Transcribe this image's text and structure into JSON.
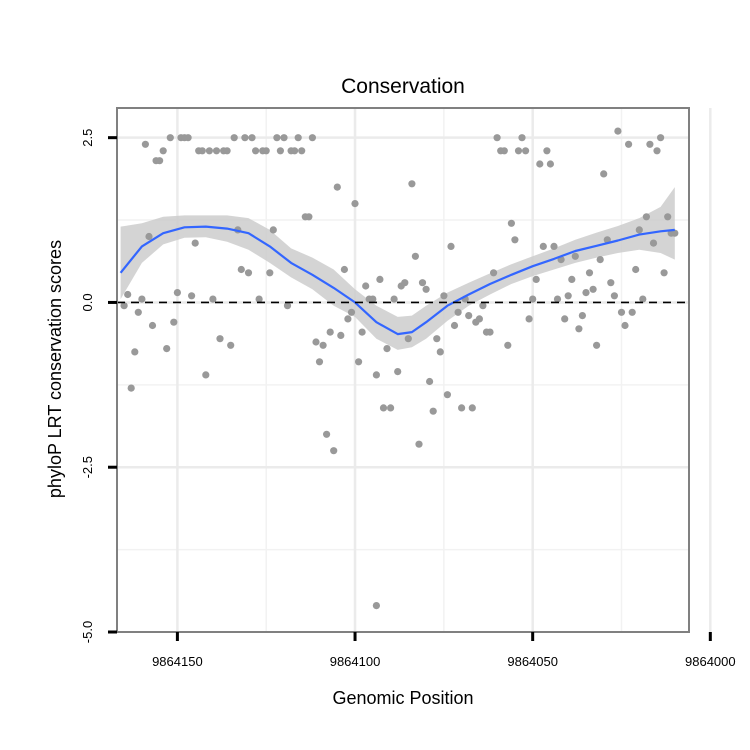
{
  "chart_data": {
    "type": "scatter",
    "title": "Conservation",
    "xlabel": "Genomic Position",
    "ylabel": "phyloP LRT conservation scores",
    "x_reversed": true,
    "xlim": [
      9864167,
      9864006
    ],
    "ylim": [
      -5.0,
      2.95
    ],
    "x_ticks": [
      9864150,
      9864100,
      9864050,
      9864000
    ],
    "x_tick_labels": [
      "9864150",
      "9864100",
      "9864050",
      "9864000"
    ],
    "y_ticks": [
      2.5,
      0.0,
      -2.5,
      -5.0
    ],
    "y_tick_labels": [
      "2.5",
      "0.0",
      "-2.5",
      "-5.0"
    ],
    "reference_line": {
      "y": 0.0,
      "style": "dashed",
      "color": "#000000"
    },
    "point_color": "#999999",
    "smooth_color": "#3366ff",
    "ribbon_color": "#cccccc",
    "points": [
      [
        9864165,
        -0.05
      ],
      [
        9864164,
        0.12
      ],
      [
        9864163,
        -1.3
      ],
      [
        9864162,
        -0.75
      ],
      [
        9864161,
        -0.15
      ],
      [
        9864160,
        0.05
      ],
      [
        9864159,
        2.4
      ],
      [
        9864158,
        1.0
      ],
      [
        9864157,
        -0.35
      ],
      [
        9864156,
        2.15
      ],
      [
        9864155,
        2.15
      ],
      [
        9864154,
        2.3
      ],
      [
        9864153,
        -0.7
      ],
      [
        9864152,
        2.5
      ],
      [
        9864151,
        -0.3
      ],
      [
        9864150,
        0.15
      ],
      [
        9864149,
        2.5
      ],
      [
        9864148,
        2.5
      ],
      [
        9864147,
        2.5
      ],
      [
        9864146,
        0.1
      ],
      [
        9864145,
        0.9
      ],
      [
        9864144,
        2.3
      ],
      [
        9864143,
        2.3
      ],
      [
        9864142,
        -1.1
      ],
      [
        9864141,
        2.3
      ],
      [
        9864140,
        0.05
      ],
      [
        9864139,
        2.3
      ],
      [
        9864138,
        -0.55
      ],
      [
        9864137,
        2.3
      ],
      [
        9864136,
        2.3
      ],
      [
        9864135,
        -0.65
      ],
      [
        9864134,
        2.5
      ],
      [
        9864133,
        1.1
      ],
      [
        9864132,
        0.5
      ],
      [
        9864131,
        2.5
      ],
      [
        9864130,
        0.45
      ],
      [
        9864129,
        2.5
      ],
      [
        9864128,
        2.3
      ],
      [
        9864127,
        0.05
      ],
      [
        9864126,
        2.3
      ],
      [
        9864125,
        2.3
      ],
      [
        9864124,
        0.45
      ],
      [
        9864123,
        1.1
      ],
      [
        9864122,
        2.5
      ],
      [
        9864121,
        2.3
      ],
      [
        9864120,
        2.5
      ],
      [
        9864119,
        -0.05
      ],
      [
        9864118,
        2.3
      ],
      [
        9864117,
        2.3
      ],
      [
        9864116,
        2.5
      ],
      [
        9864115,
        2.3
      ],
      [
        9864114,
        1.3
      ],
      [
        9864113,
        1.3
      ],
      [
        9864112,
        2.5
      ],
      [
        9864111,
        -0.6
      ],
      [
        9864110,
        -0.9
      ],
      [
        9864109,
        -0.65
      ],
      [
        9864108,
        -2.0
      ],
      [
        9864107,
        -0.45
      ],
      [
        9864106,
        -2.25
      ],
      [
        9864105,
        1.75
      ],
      [
        9864104,
        -0.5
      ],
      [
        9864103,
        0.5
      ],
      [
        9864102,
        -0.25
      ],
      [
        9864101,
        -0.15
      ],
      [
        9864100,
        1.5
      ],
      [
        9864099,
        -0.9
      ],
      [
        9864098,
        -0.45
      ],
      [
        9864097,
        0.25
      ],
      [
        9864096,
        0.05
      ],
      [
        9864095,
        0.05
      ],
      [
        9864094,
        -1.1
      ],
      [
        9864093,
        0.35
      ],
      [
        9864092,
        -1.6
      ],
      [
        9864091,
        -0.7
      ],
      [
        9864090,
        -1.6
      ],
      [
        9864089,
        0.05
      ],
      [
        9864088,
        -1.05
      ],
      [
        9864087,
        0.25
      ],
      [
        9864086,
        0.3
      ],
      [
        9864085,
        -0.55
      ],
      [
        9864084,
        1.8
      ],
      [
        9864083,
        0.7
      ],
      [
        9864082,
        -2.15
      ],
      [
        9864081,
        0.3
      ],
      [
        9864080,
        0.2
      ],
      [
        9864079,
        -1.2
      ],
      [
        9864078,
        -1.65
      ],
      [
        9864077,
        -0.55
      ],
      [
        9864076,
        -0.75
      ],
      [
        9864075,
        0.1
      ],
      [
        9864074,
        -1.4
      ],
      [
        9864073,
        0.85
      ],
      [
        9864072,
        -0.35
      ],
      [
        9864071,
        -0.15
      ],
      [
        9864070,
        -1.6
      ],
      [
        9864069,
        0.05
      ],
      [
        9864068,
        -0.2
      ],
      [
        9864067,
        -1.6
      ],
      [
        9864066,
        -0.3
      ],
      [
        9864065,
        -0.25
      ],
      [
        9864064,
        -0.05
      ],
      [
        9864063,
        -0.45
      ],
      [
        9864062,
        -0.45
      ],
      [
        9864061,
        0.45
      ],
      [
        9864060,
        2.5
      ],
      [
        9864059,
        2.3
      ],
      [
        9864058,
        2.3
      ],
      [
        9864057,
        -0.65
      ],
      [
        9864056,
        1.2
      ],
      [
        9864055,
        0.95
      ],
      [
        9864054,
        2.3
      ],
      [
        9864053,
        2.5
      ],
      [
        9864052,
        2.3
      ],
      [
        9864051,
        -0.25
      ],
      [
        9864050,
        0.05
      ],
      [
        9864049,
        0.35
      ],
      [
        9864048,
        2.1
      ],
      [
        9864047,
        0.85
      ],
      [
        9864046,
        2.3
      ],
      [
        9864045,
        2.1
      ],
      [
        9864044,
        0.85
      ],
      [
        9864043,
        0.05
      ],
      [
        9864042,
        0.65
      ],
      [
        9864041,
        -0.25
      ],
      [
        9864040,
        0.1
      ],
      [
        9864039,
        0.35
      ],
      [
        9864038,
        0.7
      ],
      [
        9864037,
        -0.4
      ],
      [
        9864036,
        -0.2
      ],
      [
        9864035,
        0.15
      ],
      [
        9864034,
        0.45
      ],
      [
        9864033,
        0.2
      ],
      [
        9864032,
        -0.65
      ],
      [
        9864031,
        0.65
      ],
      [
        9864030,
        1.95
      ],
      [
        9864029,
        0.95
      ],
      [
        9864028,
        0.3
      ],
      [
        9864027,
        0.1
      ],
      [
        9864026,
        2.6
      ],
      [
        9864025,
        -0.15
      ],
      [
        9864024,
        -0.35
      ],
      [
        9864023,
        2.4
      ],
      [
        9864022,
        -0.15
      ],
      [
        9864021,
        0.5
      ],
      [
        9864020,
        1.1
      ],
      [
        9864019,
        0.05
      ],
      [
        9864018,
        1.3
      ],
      [
        9864017,
        2.4
      ],
      [
        9864016,
        0.9
      ],
      [
        9864015,
        2.3
      ],
      [
        9864014,
        2.5
      ],
      [
        9864013,
        0.45
      ],
      [
        9864012,
        1.3
      ],
      [
        9864011,
        1.05
      ],
      [
        9864010,
        1.05
      ],
      [
        9864094,
        -4.6
      ]
    ],
    "smooth": [
      [
        9864166,
        0.45
      ],
      [
        9864160,
        0.85
      ],
      [
        9864154,
        1.05
      ],
      [
        9864148,
        1.14
      ],
      [
        9864142,
        1.15
      ],
      [
        9864136,
        1.12
      ],
      [
        9864130,
        1.05
      ],
      [
        9864124,
        0.85
      ],
      [
        9864118,
        0.6
      ],
      [
        9864112,
        0.42
      ],
      [
        9864106,
        0.22
      ],
      [
        9864100,
        0.0
      ],
      [
        9864094,
        -0.3
      ],
      [
        9864088,
        -0.48
      ],
      [
        9864084,
        -0.45
      ],
      [
        9864080,
        -0.3
      ],
      [
        9864074,
        -0.05
      ],
      [
        9864068,
        0.12
      ],
      [
        9864062,
        0.28
      ],
      [
        9864056,
        0.42
      ],
      [
        9864050,
        0.55
      ],
      [
        9864044,
        0.66
      ],
      [
        9864038,
        0.78
      ],
      [
        9864032,
        0.86
      ],
      [
        9864026,
        0.94
      ],
      [
        9864020,
        1.03
      ],
      [
        9864014,
        1.08
      ],
      [
        9864010,
        1.1
      ]
    ],
    "ribbon": [
      [
        9864166,
        0.05,
        1.15
      ],
      [
        9864160,
        0.6,
        1.2
      ],
      [
        9864154,
        0.88,
        1.3
      ],
      [
        9864148,
        0.98,
        1.32
      ],
      [
        9864142,
        0.99,
        1.32
      ],
      [
        9864136,
        0.92,
        1.32
      ],
      [
        9864130,
        0.8,
        1.28
      ],
      [
        9864124,
        0.6,
        1.1
      ],
      [
        9864118,
        0.38,
        0.82
      ],
      [
        9864112,
        0.2,
        0.68
      ],
      [
        9864106,
        -0.05,
        0.5
      ],
      [
        9864100,
        -0.22,
        0.2
      ],
      [
        9864094,
        -0.55,
        -0.05
      ],
      [
        9864088,
        -0.72,
        -0.22
      ],
      [
        9864084,
        -0.68,
        -0.2
      ],
      [
        9864080,
        -0.55,
        -0.05
      ],
      [
        9864074,
        -0.28,
        0.15
      ],
      [
        9864068,
        -0.05,
        0.3
      ],
      [
        9864062,
        0.12,
        0.44
      ],
      [
        9864056,
        0.28,
        0.58
      ],
      [
        9864050,
        0.4,
        0.7
      ],
      [
        9864044,
        0.5,
        0.82
      ],
      [
        9864038,
        0.6,
        0.95
      ],
      [
        9864032,
        0.68,
        1.06
      ],
      [
        9864026,
        0.75,
        1.16
      ],
      [
        9864020,
        0.8,
        1.28
      ],
      [
        9864014,
        0.75,
        1.45
      ],
      [
        9864010,
        0.65,
        1.75
      ]
    ]
  }
}
